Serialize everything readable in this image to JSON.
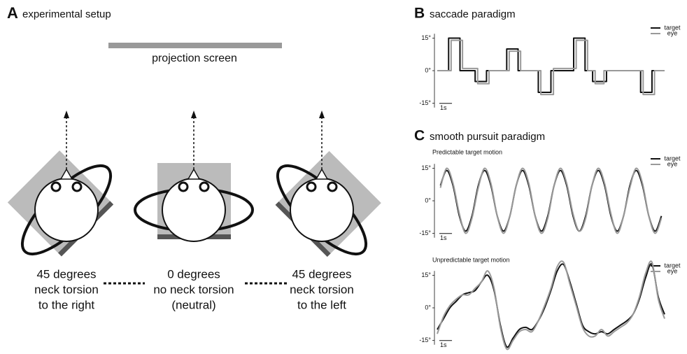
{
  "panel_a": {
    "letter": "A",
    "title": "experimental setup",
    "screen_label": "projection screen",
    "conditions": [
      {
        "lines": [
          "45 degrees",
          "neck torsion",
          "to the right"
        ]
      },
      {
        "lines": [
          "0 degrees",
          "no neck torsion",
          "(neutral)"
        ]
      },
      {
        "lines": [
          "45 degrees",
          "neck torsion",
          "to the left"
        ]
      }
    ]
  },
  "chart_data": [
    {
      "type": "line",
      "panel": "B",
      "title": "saccade paradigm",
      "scale_bar": "1s",
      "xlim": [
        0,
        18
      ],
      "ylim": [
        -17,
        17
      ],
      "yticks": [
        {
          "value": 15,
          "label": "15°"
        },
        {
          "value": 0,
          "label": "0°"
        },
        {
          "value": -15,
          "label": "-15°"
        }
      ],
      "series": [
        {
          "name": "target",
          "color": "#111111",
          "x": [
            0,
            0.9,
            0.9,
            1.8,
            1.8,
            3.0,
            3.0,
            3.9,
            3.9,
            5.5,
            5.5,
            6.4,
            6.4,
            8.0,
            8.0,
            9.0,
            9.0,
            10.8,
            10.8,
            11.7,
            11.7,
            12.3,
            12.3,
            13.4,
            13.4,
            16.1,
            16.1,
            17.0,
            17.0,
            18
          ],
          "values": [
            0,
            0,
            15,
            15,
            0,
            0,
            -5,
            -5,
            0,
            0,
            10,
            10,
            0,
            0,
            -10,
            -10,
            0,
            0,
            15,
            15,
            0,
            0,
            -5,
            -5,
            0,
            0,
            -10,
            -10,
            0,
            0
          ]
        },
        {
          "name": "eye",
          "color": "#999999",
          "x": [
            0,
            1.1,
            1.1,
            2.0,
            2.0,
            3.2,
            3.2,
            4.1,
            4.1,
            5.7,
            5.7,
            6.6,
            6.6,
            8.2,
            8.2,
            9.2,
            9.2,
            11.0,
            11.0,
            11.9,
            11.9,
            12.5,
            12.5,
            13.2,
            13.2,
            16.3,
            16.3,
            17.2,
            17.2,
            18
          ],
          "values": [
            0,
            0,
            14,
            14,
            1,
            1,
            -6,
            -6,
            0,
            0,
            9,
            9,
            0,
            0,
            -11,
            -11,
            1,
            1,
            14,
            14,
            0,
            0,
            -6,
            -6,
            0,
            0,
            -11,
            -11,
            0,
            0
          ]
        }
      ]
    },
    {
      "type": "spline",
      "panel": "C",
      "title": "smooth pursuit paradigm",
      "subtitle": "Predictable target motion",
      "scale_bar": "1s",
      "xlim": [
        0,
        18
      ],
      "ylim": [
        -17,
        17
      ],
      "yticks": [
        {
          "value": 15,
          "label": "15°"
        },
        {
          "value": 0,
          "label": "0°"
        },
        {
          "value": -15,
          "label": "-15°"
        }
      ],
      "x": [
        0.25,
        0.75,
        1.25,
        1.75,
        2.25,
        2.75,
        3.25,
        3.75,
        4.25,
        4.75,
        5.25,
        5.75,
        6.25,
        6.75,
        7.25,
        7.75,
        8.25,
        8.75,
        9.25,
        9.75,
        10.25,
        10.75,
        11.25,
        11.75,
        12.25,
        12.75,
        13.25,
        13.75,
        14.25,
        14.75,
        15.25,
        15.75,
        16.25,
        16.75,
        17.25,
        17.75
      ],
      "series": [
        {
          "name": "target",
          "color": "#111111",
          "values": [
            7,
            14,
            7,
            -7,
            -14,
            -7,
            7,
            14,
            7,
            -7,
            -14,
            -7,
            7,
            14,
            7,
            -7,
            -14,
            -7,
            7,
            14,
            7,
            -7,
            -14,
            -7,
            7,
            14,
            7,
            -7,
            -14,
            -7,
            7,
            14,
            7,
            -7,
            -14,
            -7
          ]
        },
        {
          "name": "eye",
          "color": "#999999",
          "values": [
            6,
            15,
            8,
            -6,
            -15,
            -8,
            6,
            15,
            8,
            -7,
            -15,
            -7,
            7,
            15,
            8,
            -7,
            -15,
            -8,
            7,
            15,
            8,
            -6,
            -14,
            -8,
            7,
            15,
            8,
            -6,
            -15,
            -7,
            6,
            15,
            8,
            -7,
            -15,
            -8
          ]
        }
      ]
    },
    {
      "type": "spline",
      "subtitle": "Unpredictable target motion",
      "scale_bar": "1s",
      "xlim": [
        0,
        18
      ],
      "ylim": [
        -17,
        17
      ],
      "yticks": [
        {
          "value": 15,
          "label": "15°"
        },
        {
          "value": 0,
          "label": "0°"
        },
        {
          "value": -15,
          "label": "-15°"
        }
      ],
      "x": [
        0,
        0.5,
        1,
        1.5,
        2,
        2.5,
        3,
        3.5,
        4,
        4.5,
        5,
        5.5,
        6,
        6.5,
        7,
        7.5,
        8,
        8.5,
        9,
        9.5,
        10,
        10.5,
        11,
        11.5,
        12,
        12.5,
        13,
        13.5,
        14,
        14.5,
        15,
        15.5,
        16,
        16.5,
        17,
        17.5,
        18
      ],
      "series": [
        {
          "name": "target",
          "color": "#111111",
          "values": [
            -10,
            -5,
            0,
            3,
            6,
            7,
            8,
            12,
            15,
            8,
            -8,
            -18,
            -14,
            -10,
            -9,
            -10,
            -6,
            0,
            8,
            17,
            20,
            12,
            2,
            -8,
            -11,
            -12,
            -11,
            -12,
            -10,
            -8,
            -6,
            -3,
            4,
            14,
            20,
            5,
            -3
          ]
        },
        {
          "name": "eye",
          "color": "#999999",
          "values": [
            -12,
            -4,
            1,
            4,
            6,
            6,
            9,
            12,
            17,
            9,
            -9,
            -19,
            -15,
            -11,
            -10,
            -11,
            -6,
            1,
            9,
            19,
            21,
            11,
            1,
            -9,
            -13,
            -13,
            -10,
            -13,
            -11,
            -9,
            -7,
            -3,
            5,
            16,
            21,
            4,
            -5
          ]
        }
      ]
    }
  ]
}
